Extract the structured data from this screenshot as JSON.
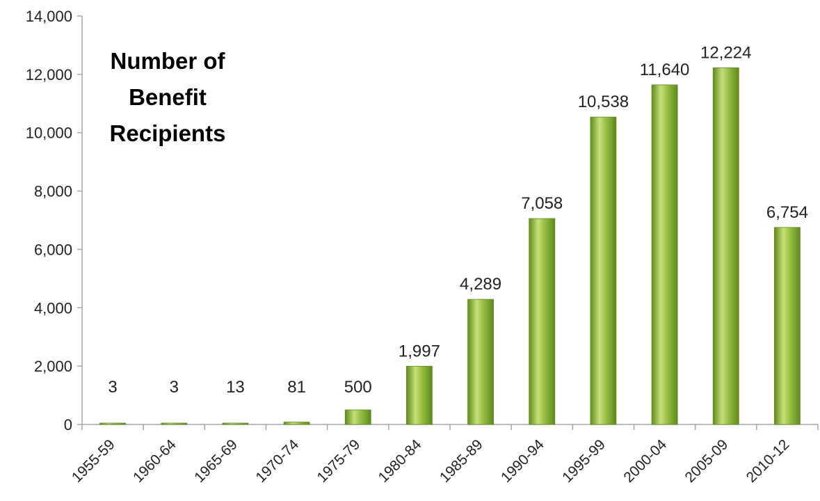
{
  "chart_data": {
    "type": "bar",
    "title": [
      "Number of",
      "Benefit",
      "Recipients"
    ],
    "xlabel": "",
    "ylabel": "",
    "categories": [
      "1955-59",
      "1960-64",
      "1965-69",
      "1970-74",
      "1975-79",
      "1980-84",
      "1985-89",
      "1990-94",
      "1995-99",
      "2000-04",
      "2005-09",
      "2010-12"
    ],
    "values": [
      3,
      3,
      13,
      81,
      500,
      1997,
      4289,
      7058,
      10538,
      11640,
      12224,
      6754
    ],
    "value_labels": [
      "3",
      "3",
      "13",
      "81",
      "500",
      "1,997",
      "4,289",
      "7,058",
      "10,538",
      "11,640",
      "12,224",
      "6,754"
    ],
    "ylim": [
      0,
      14000
    ],
    "yticks": [
      0,
      2000,
      4000,
      6000,
      8000,
      10000,
      12000,
      14000
    ],
    "ytick_labels": [
      "0",
      "2,000",
      "4,000",
      "6,000",
      "8,000",
      "10,000",
      "12,000",
      "14,000"
    ],
    "grid": false,
    "legend": "none",
    "bar_color": "#8db83a",
    "bar_color_light": "#c5e07a",
    "bar_color_dark": "#5f8a1e"
  }
}
